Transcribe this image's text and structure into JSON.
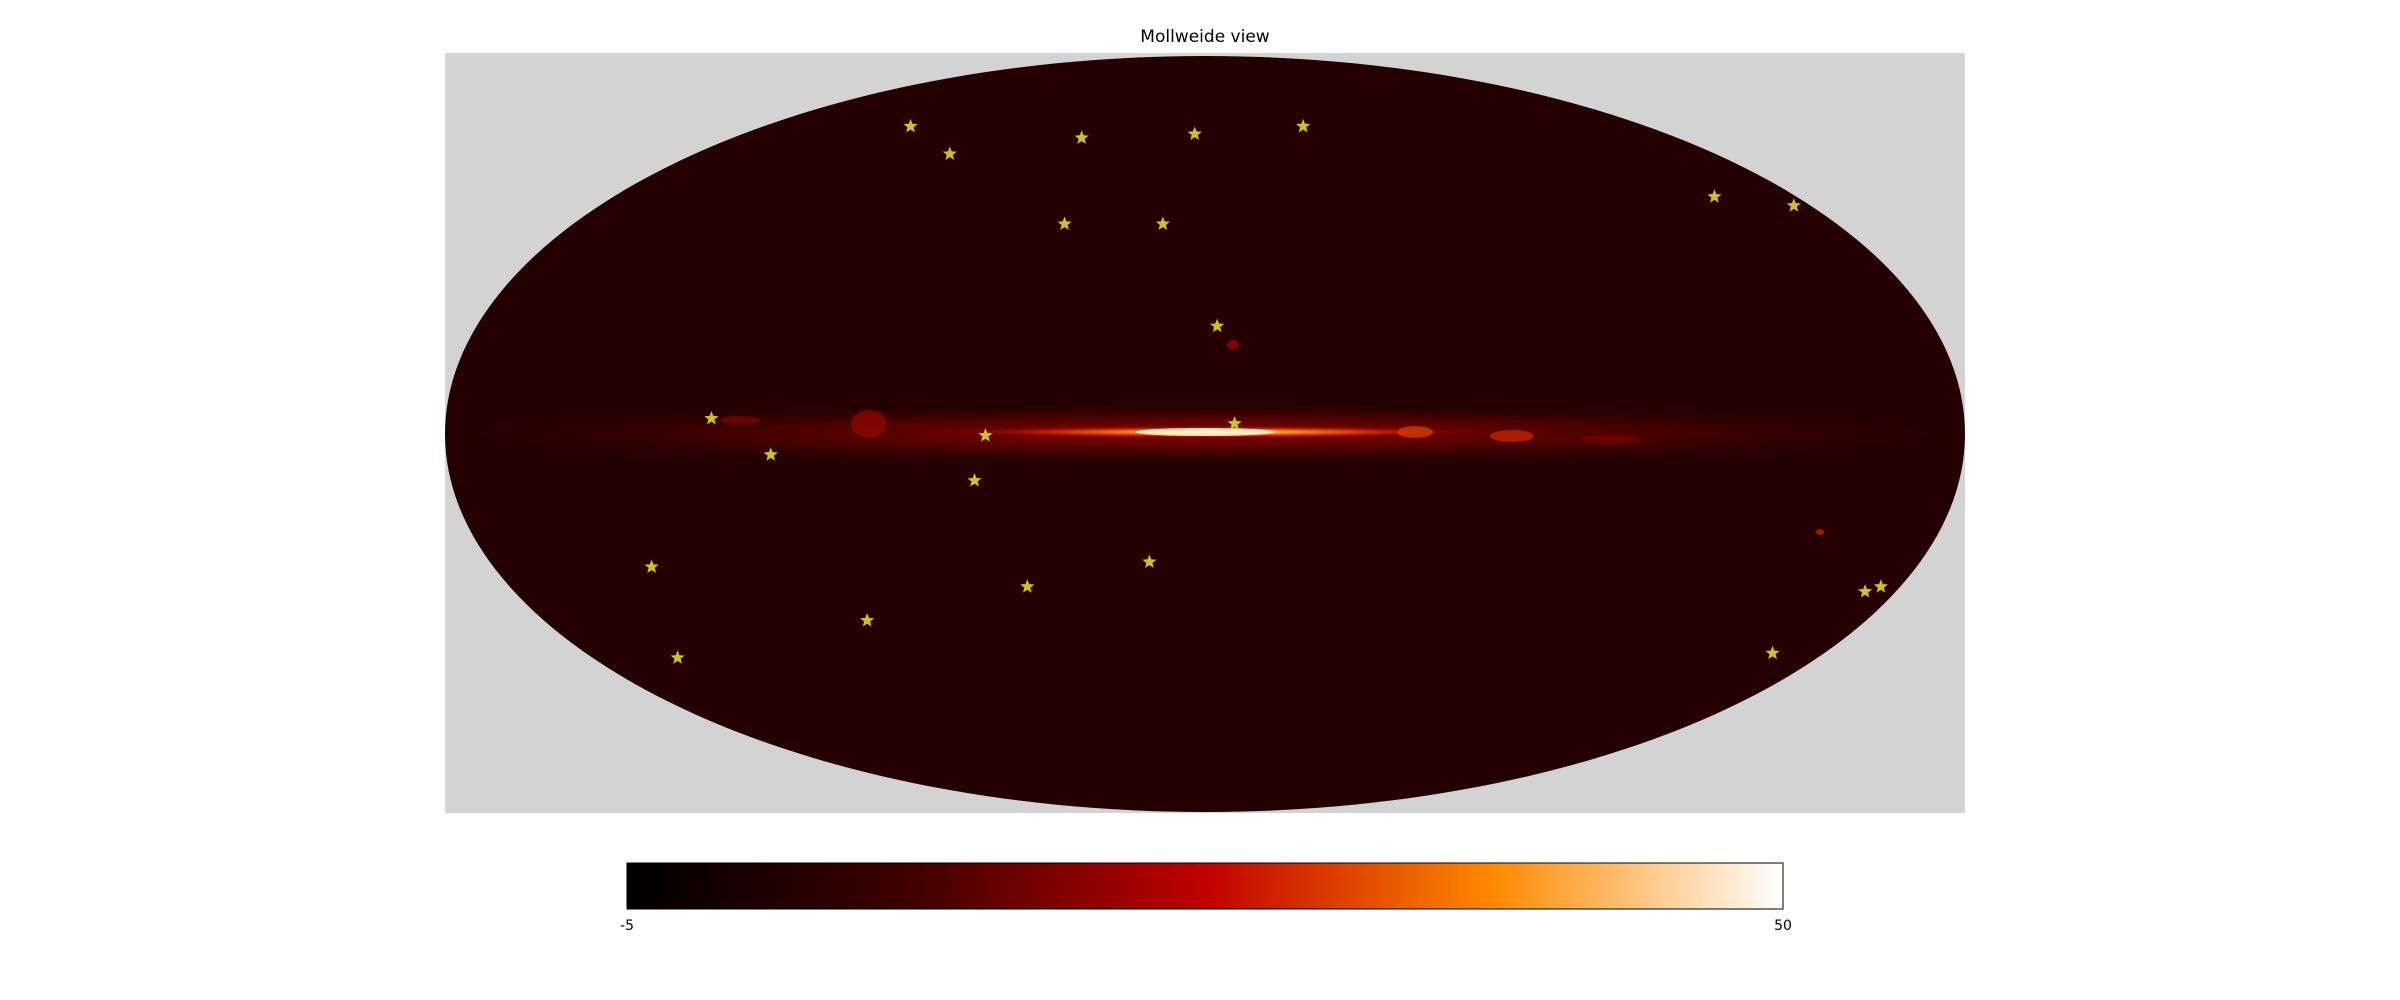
{
  "chart_data": {
    "type": "heatmap",
    "projection": "Mollweide",
    "title": "Mollweide view",
    "colormap": "afmhot",
    "colorbar": {
      "min": -5,
      "max": 50,
      "min_label": "-5",
      "max_label": "50",
      "orientation": "horizontal",
      "placement": "bottom"
    },
    "background_color": "#d3d3d3",
    "map_base_color": "#250000",
    "band_color": "#c81a00",
    "star_color": "#c9c41f",
    "marker": "star",
    "stars": [
      {
        "lon": 120,
        "lat": 65
      },
      {
        "lon": 90,
        "lat": 58
      },
      {
        "lon": 47,
        "lat": 62
      },
      {
        "lon": 4,
        "lat": 63
      },
      {
        "lon": -40,
        "lat": 65
      },
      {
        "lon": -155,
        "lat": 48
      },
      {
        "lon": -175,
        "lat": 46
      },
      {
        "lon": 40,
        "lat": 42
      },
      {
        "lon": 12,
        "lat": 42
      },
      {
        "lon": -3,
        "lat": 21
      },
      {
        "lon": 117,
        "lat": 3
      },
      {
        "lon": 52,
        "lat": -0.3
      },
      {
        "lon": -7,
        "lat": 2
      },
      {
        "lon": 103,
        "lat": -4
      },
      {
        "lon": 55,
        "lat": -9
      },
      {
        "lon": 140,
        "lat": -26
      },
      {
        "lon": 46,
        "lat": -30
      },
      {
        "lon": 14,
        "lat": -25
      },
      {
        "lon": 92,
        "lat": -37
      },
      {
        "lon": 155,
        "lat": -45
      },
      {
        "lon": -175,
        "lat": -30
      },
      {
        "lon": -172,
        "lat": -31
      },
      {
        "lon": -165,
        "lat": -44
      }
    ]
  }
}
